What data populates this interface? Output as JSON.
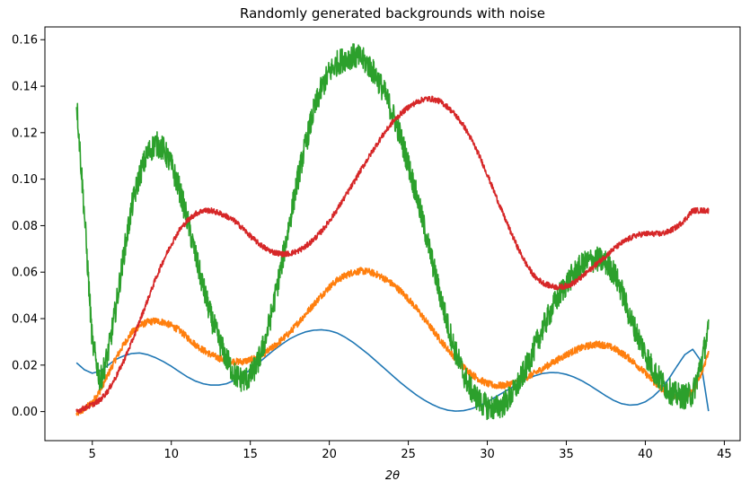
{
  "chart_data": {
    "type": "line",
    "title": "Randomly generated backgrounds with noise",
    "xlabel": "2θ",
    "ylabel": "",
    "xlim": [
      2.0,
      46.0
    ],
    "ylim": [
      -0.0125,
      0.1655
    ],
    "xticks": [
      5,
      10,
      15,
      20,
      25,
      30,
      35,
      40,
      45
    ],
    "yticks": [
      0.0,
      0.02,
      0.04,
      0.06,
      0.08,
      0.1,
      0.12,
      0.14,
      0.16
    ],
    "xtick_labels": [
      "5",
      "10",
      "15",
      "20",
      "25",
      "30",
      "35",
      "40",
      "45"
    ],
    "ytick_labels": [
      "0.00",
      "0.02",
      "0.04",
      "0.06",
      "0.08",
      "0.10",
      "0.12",
      "0.14",
      "0.16"
    ],
    "grid": false,
    "legend": false,
    "series": [
      {
        "color": "#1f77b4",
        "noise": 0.0,
        "x": [
          4.0,
          4.5,
          5.0,
          5.5,
          6.0,
          6.5,
          7.0,
          7.5,
          8.0,
          8.5,
          9.0,
          9.5,
          10.0,
          10.5,
          11.0,
          11.5,
          12.0,
          12.5,
          13.0,
          13.5,
          14.0,
          14.5,
          15.0,
          15.5,
          16.0,
          16.5,
          17.0,
          17.5,
          18.0,
          18.5,
          19.0,
          19.5,
          20.0,
          20.5,
          21.0,
          21.5,
          22.0,
          22.5,
          23.0,
          23.5,
          24.0,
          24.5,
          25.0,
          25.5,
          26.0,
          26.5,
          27.0,
          27.5,
          28.0,
          28.5,
          29.0,
          29.5,
          30.0,
          30.5,
          31.0,
          31.5,
          32.0,
          32.5,
          33.0,
          33.5,
          34.0,
          34.5,
          35.0,
          35.5,
          36.0,
          36.5,
          37.0,
          37.5,
          38.0,
          38.5,
          39.0,
          39.5,
          40.0,
          40.5,
          41.0,
          41.5,
          42.0,
          42.5,
          43.0,
          43.5,
          44.0
        ],
        "y": [
          0.021,
          0.018,
          0.0165,
          0.0175,
          0.02,
          0.0225,
          0.024,
          0.025,
          0.0252,
          0.0245,
          0.0232,
          0.0215,
          0.0195,
          0.0172,
          0.015,
          0.0132,
          0.012,
          0.0114,
          0.0114,
          0.012,
          0.0135,
          0.0155,
          0.018,
          0.0208,
          0.0237,
          0.0265,
          0.029,
          0.0313,
          0.033,
          0.0343,
          0.035,
          0.0352,
          0.0348,
          0.0338,
          0.032,
          0.0298,
          0.0272,
          0.0245,
          0.0215,
          0.0185,
          0.0155,
          0.0125,
          0.0098,
          0.0072,
          0.005,
          0.0031,
          0.0016,
          0.0006,
          0.0002,
          0.0004,
          0.0012,
          0.0025,
          0.0042,
          0.0062,
          0.0082,
          0.0102,
          0.0122,
          0.014,
          0.0154,
          0.0164,
          0.0168,
          0.0167,
          0.016,
          0.0148,
          0.0132,
          0.0112,
          0.009,
          0.0068,
          0.0048,
          0.0034,
          0.0028,
          0.003,
          0.0042,
          0.0065,
          0.0098,
          0.0142,
          0.0195,
          0.0245,
          0.0268,
          0.022,
          0.0002
        ]
      },
      {
        "color": "#ff7f0e",
        "noise": 0.0015,
        "x": [
          4.0,
          4.5,
          5.0,
          5.5,
          6.0,
          6.5,
          7.0,
          7.5,
          8.0,
          8.5,
          9.0,
          9.5,
          10.0,
          10.5,
          11.0,
          11.5,
          12.0,
          12.5,
          13.0,
          13.5,
          14.0,
          14.5,
          15.0,
          15.5,
          16.0,
          16.5,
          17.0,
          17.5,
          18.0,
          18.5,
          19.0,
          19.5,
          20.0,
          20.5,
          21.0,
          21.5,
          22.0,
          22.5,
          23.0,
          23.5,
          24.0,
          24.5,
          25.0,
          25.5,
          26.0,
          26.5,
          27.0,
          27.5,
          28.0,
          28.5,
          29.0,
          29.5,
          30.0,
          30.5,
          31.0,
          31.5,
          32.0,
          32.5,
          33.0,
          33.5,
          34.0,
          34.5,
          35.0,
          35.5,
          36.0,
          36.5,
          37.0,
          37.5,
          38.0,
          38.5,
          39.0,
          39.5,
          40.0,
          40.5,
          41.0,
          41.5,
          42.0,
          42.5,
          43.0,
          43.5,
          44.0
        ],
        "y": [
          -0.001,
          0.001,
          0.004,
          0.009,
          0.016,
          0.023,
          0.029,
          0.034,
          0.037,
          0.0385,
          0.039,
          0.0385,
          0.037,
          0.035,
          0.032,
          0.029,
          0.0265,
          0.0245,
          0.023,
          0.022,
          0.0215,
          0.0215,
          0.0222,
          0.0235,
          0.0255,
          0.028,
          0.031,
          0.034,
          0.038,
          0.042,
          0.046,
          0.05,
          0.0535,
          0.0565,
          0.0585,
          0.06,
          0.0605,
          0.0602,
          0.059,
          0.0572,
          0.0548,
          0.052,
          0.0485,
          0.0445,
          0.04,
          0.0355,
          0.031,
          0.0268,
          0.0228,
          0.0192,
          0.0162,
          0.0138,
          0.012,
          0.0112,
          0.0112,
          0.012,
          0.0132,
          0.0148,
          0.0165,
          0.0185,
          0.0205,
          0.0225,
          0.0245,
          0.0262,
          0.0275,
          0.0285,
          0.029,
          0.0285,
          0.0272,
          0.0252,
          0.0228,
          0.0198,
          0.0165,
          0.013,
          0.0098,
          0.0075,
          0.0062,
          0.0065,
          0.009,
          0.015,
          0.026
        ]
      },
      {
        "color": "#2ca02c",
        "noise": 0.0055,
        "x": [
          4.0,
          4.5,
          5.0,
          5.5,
          6.0,
          6.5,
          7.0,
          7.5,
          8.0,
          8.5,
          9.0,
          9.5,
          10.0,
          10.5,
          11.0,
          11.5,
          12.0,
          12.5,
          13.0,
          13.5,
          14.0,
          14.5,
          15.0,
          15.5,
          16.0,
          16.5,
          17.0,
          17.5,
          18.0,
          18.5,
          19.0,
          19.5,
          20.0,
          20.5,
          21.0,
          21.5,
          22.0,
          22.5,
          23.0,
          23.5,
          24.0,
          24.5,
          25.0,
          25.5,
          26.0,
          26.5,
          27.0,
          27.5,
          28.0,
          28.5,
          29.0,
          29.5,
          30.0,
          30.5,
          31.0,
          31.5,
          32.0,
          32.5,
          33.0,
          33.5,
          34.0,
          34.5,
          35.0,
          35.5,
          36.0,
          36.5,
          37.0,
          37.5,
          38.0,
          38.5,
          39.0,
          39.5,
          40.0,
          40.5,
          41.0,
          41.5,
          42.0,
          42.5,
          43.0,
          43.5,
          44.0
        ],
        "y": [
          0.134,
          0.085,
          0.03,
          0.013,
          0.025,
          0.045,
          0.068,
          0.088,
          0.102,
          0.111,
          0.1155,
          0.113,
          0.106,
          0.096,
          0.083,
          0.068,
          0.054,
          0.041,
          0.031,
          0.0225,
          0.016,
          0.0135,
          0.015,
          0.0215,
          0.032,
          0.047,
          0.064,
          0.082,
          0.1,
          0.115,
          0.129,
          0.139,
          0.146,
          0.15,
          0.152,
          0.153,
          0.152,
          0.149,
          0.144,
          0.137,
          0.1285,
          0.1185,
          0.1065,
          0.0935,
          0.0795,
          0.065,
          0.0505,
          0.037,
          0.0255,
          0.016,
          0.009,
          0.0045,
          0.002,
          0.0015,
          0.003,
          0.0065,
          0.0125,
          0.0195,
          0.0275,
          0.0355,
          0.043,
          0.0495,
          0.055,
          0.0595,
          0.063,
          0.065,
          0.0655,
          0.064,
          0.06,
          0.052,
          0.041,
          0.033,
          0.025,
          0.018,
          0.013,
          0.009,
          0.007,
          0.0065,
          0.0075,
          0.02,
          0.035
        ],
        "x_override_note": ""
      },
      {
        "color": "#d62728",
        "noise": 0.0012,
        "x": [
          4.0,
          4.5,
          5.0,
          5.5,
          6.0,
          6.5,
          7.0,
          7.5,
          8.0,
          8.5,
          9.0,
          9.5,
          10.0,
          10.5,
          11.0,
          11.5,
          12.0,
          12.5,
          13.0,
          13.5,
          14.0,
          14.5,
          15.0,
          15.5,
          16.0,
          16.5,
          17.0,
          17.5,
          18.0,
          18.5,
          19.0,
          19.5,
          20.0,
          20.5,
          21.0,
          21.5,
          22.0,
          22.5,
          23.0,
          23.5,
          24.0,
          24.5,
          25.0,
          25.5,
          26.0,
          26.5,
          27.0,
          27.5,
          28.0,
          28.5,
          29.0,
          29.5,
          30.0,
          30.5,
          31.0,
          31.5,
          32.0,
          32.5,
          33.0,
          33.5,
          34.0,
          34.5,
          35.0,
          35.5,
          36.0,
          36.5,
          37.0,
          37.5,
          38.0,
          38.5,
          39.0,
          39.5,
          40.0,
          40.5,
          41.0,
          41.5,
          42.0,
          42.5,
          43.0,
          43.5,
          44.0
        ],
        "y": [
          0.0,
          0.0015,
          0.003,
          0.005,
          0.009,
          0.015,
          0.022,
          0.03,
          0.039,
          0.048,
          0.057,
          0.065,
          0.072,
          0.078,
          0.082,
          0.085,
          0.0865,
          0.0865,
          0.0855,
          0.084,
          0.082,
          0.079,
          0.0755,
          0.0725,
          0.07,
          0.0685,
          0.0678,
          0.068,
          0.069,
          0.071,
          0.074,
          0.0775,
          0.082,
          0.087,
          0.0925,
          0.098,
          0.104,
          0.1095,
          0.115,
          0.12,
          0.1245,
          0.128,
          0.131,
          0.133,
          0.1345,
          0.1345,
          0.1335,
          0.131,
          0.1275,
          0.123,
          0.117,
          0.11,
          0.102,
          0.0935,
          0.085,
          0.077,
          0.0695,
          0.063,
          0.058,
          0.0555,
          0.054,
          0.0535,
          0.054,
          0.0555,
          0.058,
          0.061,
          0.064,
          0.067,
          0.07,
          0.0725,
          0.0745,
          0.076,
          0.0765,
          0.0765,
          0.0765,
          0.0775,
          0.0795,
          0.0825,
          0.0865,
          0.0865,
          0.0865
        ]
      }
    ]
  }
}
